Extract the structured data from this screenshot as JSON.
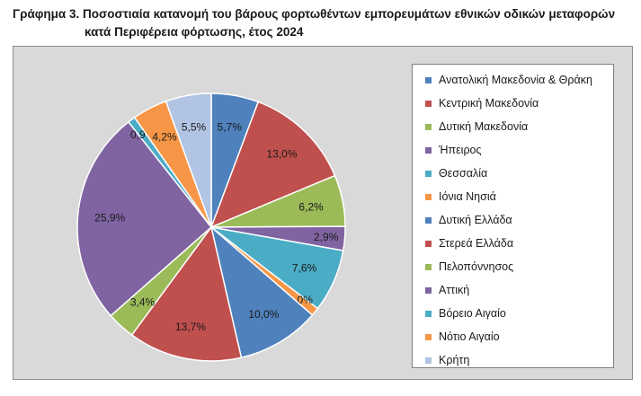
{
  "chart_data": {
    "type": "pie",
    "title_line1": "Γράφημα 3. Ποσοστιαία κατανομή του βάρους φορτωθέντων εμπορευμάτων εθνικών οδικών μεταφορών",
    "title_line2": "κατά Περιφέρεια φόρτωσης, έτος 2024",
    "legend_position": "right",
    "slices": [
      {
        "label": "Ανατολική Μακεδονία & Θράκη",
        "value": 5.7,
        "value_label": "5,7%",
        "color": "#4f81bd"
      },
      {
        "label": "Κεντρική Μακεδονία",
        "value": 13.0,
        "value_label": "13,0%",
        "color": "#c0504d"
      },
      {
        "label": "Δυτική Μακεδονία",
        "value": 6.2,
        "value_label": "6,2%",
        "color": "#9bbb59"
      },
      {
        "label": "Ήπειρος",
        "value": 2.9,
        "value_label": "2,9%",
        "color": "#8064a2"
      },
      {
        "label": "Θεσσαλία",
        "value": 7.6,
        "value_label": "7,6%",
        "color": "#4bacc6"
      },
      {
        "label": "Ιόνια Νησιά",
        "value": 1.0,
        "value_label": "1,0%",
        "color": "#f79646"
      },
      {
        "label": "Δυτική Ελλάδα",
        "value": 10.0,
        "value_label": "10,0%",
        "color": "#4f81bd"
      },
      {
        "label": "Στερεά Ελλάδα",
        "value": 13.7,
        "value_label": "13,7%",
        "color": "#c0504d"
      },
      {
        "label": "Πελοπόννησος",
        "value": 3.4,
        "value_label": "3,4%",
        "color": "#9bbb59"
      },
      {
        "label": "Αττική",
        "value": 25.9,
        "value_label": "25,9%",
        "color": "#8064a2"
      },
      {
        "label": "Βόρειο Αιγαίο",
        "value": 0.9,
        "value_label": "0,9%",
        "color": "#4bacc6"
      },
      {
        "label": "Νότιο Αιγαίο",
        "value": 4.2,
        "value_label": "4,2%",
        "color": "#f79646"
      },
      {
        "label": "Κρήτη",
        "value": 5.5,
        "value_label": "5,5%",
        "color": "#b1c4e4"
      }
    ]
  }
}
